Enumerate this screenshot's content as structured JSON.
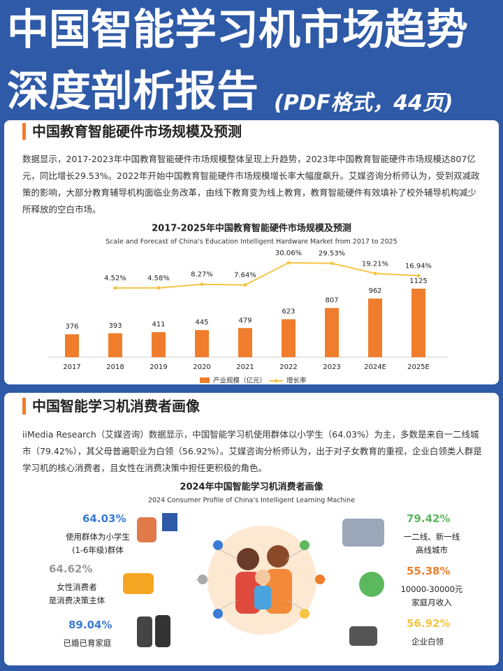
{
  "header": {
    "title_line1": "中国智能学习机市场趋势",
    "title_line2": "深度剖析报告",
    "note": "(PDF格式，44页)"
  },
  "section1": {
    "heading": "中国教育智能硬件市场规模及预测",
    "paragraph": "数据显示，2017-2023年中国教育智能硬件市场规模整体呈现上升趋势，2023年中国教育智能硬件市场规模达807亿元，同比增长29.53%。2022年开始中国教育智能硬件市场规模增长率大幅度飙升。艾媒咨询分析师认为，受到双减政策的影响，大部分教育辅导机构面临业务改革，由线下教育变为线上教育，教育智能硬件有效填补了校外辅导机构减少所释放的空白市场。"
  },
  "chart_data": {
    "type": "bar",
    "title": "2017-2025年中国教育智能硬件市场规模及预测",
    "subtitle": "Scale and Forecast of China's Education Intelligent Hardware Market from 2017 to 2025",
    "categories": [
      "2017",
      "2018",
      "2019",
      "2020",
      "2021",
      "2022",
      "2023",
      "2024E",
      "2025E"
    ],
    "series": [
      {
        "name": "产业规模（亿元）",
        "type": "bar",
        "color": "#ef7d2c",
        "values": [
          376,
          393,
          411,
          445,
          479,
          623,
          807,
          962,
          1125
        ]
      },
      {
        "name": "增长率",
        "type": "line",
        "axis": "y2",
        "color": "#f4c542",
        "values": [
          null,
          4.52,
          4.58,
          8.27,
          7.64,
          30.06,
          29.53,
          19.21,
          16.94
        ],
        "value_labels": [
          null,
          "4.52%",
          "4.58%",
          "8.27%",
          "7.64%",
          "30.06%",
          "29.53%",
          "19.21%",
          "16.94%"
        ]
      }
    ]
  },
  "section2": {
    "heading": "中国智能学习机消费者画像",
    "paragraph": "iiMedia Research（艾媒咨询）数据显示，中国智能学习机使用群体以小学生（64.03%）为主，多数是来自一二线城市（79.42%），其父母普遍职业为白领（56.92%）。艾媒咨询分析师认为，出于对子女教育的重视，企业白领类人群是学习机的核心消费者，且女性在消费决策中担任更积极的角色。",
    "infographic_title": "2024年中国智能学习机消费者画像",
    "infographic_subtitle": "2024 Consumer Profile of China's Intelligent Learning Machine",
    "stats": [
      {
        "value": "64.03%",
        "label": [
          "使用群体为小学生",
          "(1-6年级)群体"
        ]
      },
      {
        "value": "64.62%",
        "label": [
          "女性消费者",
          "是消费决策主体"
        ]
      },
      {
        "value": "89.04%",
        "label": [
          "已婚已育家庭"
        ]
      },
      {
        "value": "79.42%",
        "label": [
          "一二线、新一线",
          "高线城市"
        ]
      },
      {
        "value": "55.38%",
        "label": [
          "10000-30000元",
          "家庭月收入"
        ]
      },
      {
        "value": "56.92%",
        "label": [
          "企业白领"
        ]
      }
    ]
  }
}
